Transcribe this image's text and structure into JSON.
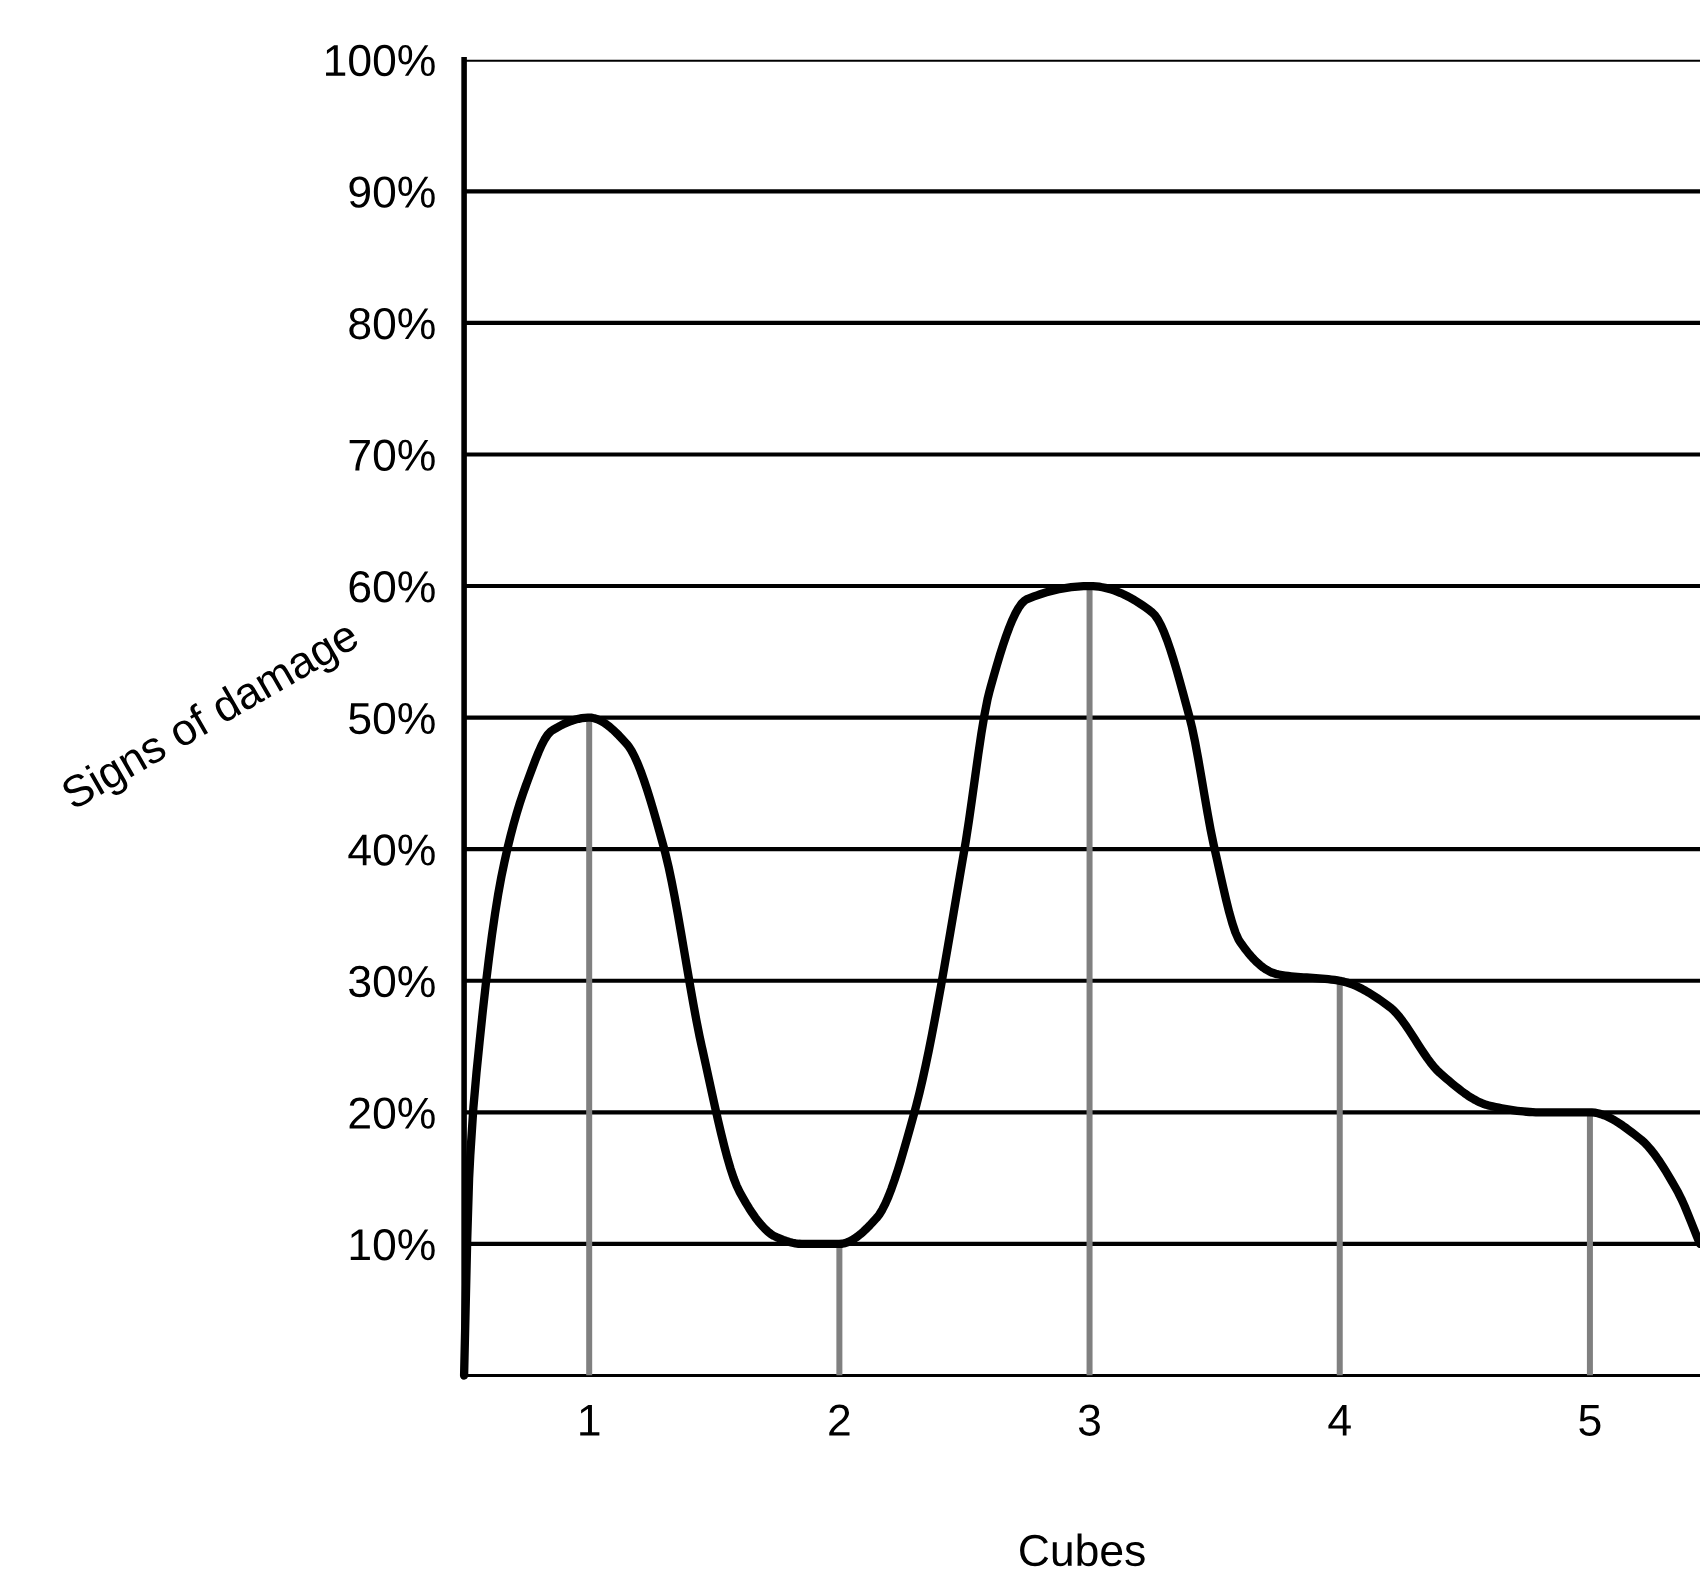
{
  "chart_data": {
    "type": "line",
    "xlabel": "Cubes",
    "ylabel": "Signs of damage",
    "xlim": [
      0.5,
      5.44
    ],
    "xticks": [
      1,
      2,
      3,
      4,
      5
    ],
    "ylim": [
      0,
      100
    ],
    "yticks": [
      {
        "value": 10,
        "label": "10%"
      },
      {
        "value": 20,
        "label": "20%"
      },
      {
        "value": 30,
        "label": "30%"
      },
      {
        "value": 40,
        "label": "40%"
      },
      {
        "value": 50,
        "label": "50%"
      },
      {
        "value": 60,
        "label": "60%"
      },
      {
        "value": 70,
        "label": "70%"
      },
      {
        "value": 80,
        "label": "80%"
      },
      {
        "value": 90,
        "label": "90%"
      },
      {
        "value": 100,
        "label": "100%"
      }
    ],
    "grid": "y",
    "legend": false,
    "series": [
      {
        "type": "bar",
        "color": "#808080",
        "x": [
          1,
          2,
          3,
          4,
          5
        ],
        "values": [
          50,
          10,
          60,
          30,
          20
        ]
      },
      {
        "color": "#000000",
        "marker": "none",
        "line_style": "solid",
        "x": [
          0.5,
          0.52,
          0.56,
          0.65,
          0.75,
          0.85,
          1,
          1.15,
          1.3,
          1.45,
          1.6,
          1.75,
          1.85,
          2,
          2.15,
          2.3,
          2.5,
          2.6,
          2.75,
          3,
          3.25,
          3.4,
          3.5,
          3.6,
          3.75,
          4,
          4.2,
          4.4,
          4.6,
          4.8,
          5,
          5.2,
          5.35,
          5.44
        ],
        "values": [
          0,
          15,
          25,
          38,
          45,
          49,
          50,
          48,
          40,
          25,
          14,
          10.5,
          10,
          10,
          12,
          20,
          40,
          52,
          59,
          60,
          58,
          50,
          40,
          33,
          30.5,
          30,
          28,
          23,
          20.5,
          20,
          20,
          18,
          14,
          10
        ]
      }
    ]
  }
}
